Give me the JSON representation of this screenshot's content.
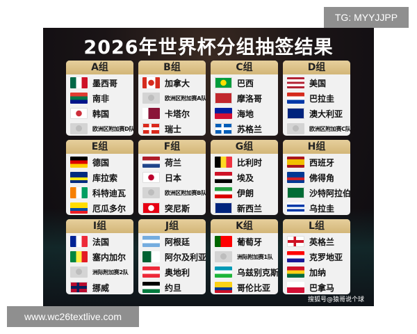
{
  "title": "2026年世界杯分组抽签结果",
  "credit": "搜狐号@猿哥说个球",
  "watermark_top": "TG: MYYJJPP",
  "watermark_bottom": "www.wc26textlive.com",
  "groups": [
    {
      "name": "A组",
      "teams": [
        {
          "name": "墨西哥",
          "flag": {
            "dir": "v",
            "colors": [
              "#006847",
              "#ffffff",
              "#ce1126"
            ]
          }
        },
        {
          "name": "南非",
          "flag": {
            "dir": "h",
            "colors": [
              "#e03c31",
              "#007749",
              "#001489"
            ]
          }
        },
        {
          "name": "韩国",
          "flag": {
            "dir": "h",
            "colors": [
              "#ffffff",
              "#ffffff"
            ],
            "dot": "#cd2e3a"
          }
        },
        {
          "name": "欧洲区附加赛D队",
          "placeholder": true
        }
      ]
    },
    {
      "name": "B组",
      "teams": [
        {
          "name": "加拿大",
          "flag": {
            "dir": "v",
            "colors": [
              "#d52b1e",
              "#ffffff",
              "#ffffff",
              "#d52b1e"
            ],
            "dot": "#d52b1e"
          }
        },
        {
          "name": "欧洲区附加赛A队",
          "placeholder": true
        },
        {
          "name": "卡塔尔",
          "flag": {
            "dir": "v",
            "colors": [
              "#ffffff",
              "#8a1538",
              "#8a1538"
            ]
          }
        },
        {
          "name": "瑞士",
          "flag": {
            "dir": "h",
            "colors": [
              "#da291c"
            ],
            "cross": "#ffffff"
          }
        }
      ]
    },
    {
      "name": "C组",
      "teams": [
        {
          "name": "巴西",
          "flag": {
            "dir": "h",
            "colors": [
              "#009c3b"
            ],
            "dot": "#ffdf00"
          }
        },
        {
          "name": "摩洛哥",
          "flag": {
            "dir": "h",
            "colors": [
              "#c1272d"
            ]
          }
        },
        {
          "name": "海地",
          "flag": {
            "dir": "h",
            "colors": [
              "#00209f",
              "#d21034"
            ]
          }
        },
        {
          "name": "苏格兰",
          "flag": {
            "dir": "h",
            "colors": [
              "#005eb8"
            ],
            "cross": "#ffffff"
          }
        }
      ]
    },
    {
      "name": "D组",
      "teams": [
        {
          "name": "美国",
          "flag": {
            "dir": "h",
            "colors": [
              "#b22234",
              "#ffffff",
              "#b22234",
              "#ffffff",
              "#b22234"
            ]
          }
        },
        {
          "name": "巴拉圭",
          "flag": {
            "dir": "h",
            "colors": [
              "#d52b1e",
              "#ffffff",
              "#0038a8"
            ]
          }
        },
        {
          "name": "澳大利亚",
          "flag": {
            "dir": "h",
            "colors": [
              "#00247d"
            ]
          }
        },
        {
          "name": "欧洲区附加赛C队",
          "placeholder": true
        }
      ]
    },
    {
      "name": "E组",
      "teams": [
        {
          "name": "德国",
          "flag": {
            "dir": "h",
            "colors": [
              "#000000",
              "#dd0000",
              "#ffce00"
            ]
          }
        },
        {
          "name": "库拉索",
          "flag": {
            "dir": "h",
            "colors": [
              "#002b7f",
              "#002b7f",
              "#f9e814",
              "#002b7f"
            ]
          }
        },
        {
          "name": "科特迪瓦",
          "flag": {
            "dir": "v",
            "colors": [
              "#f77f00",
              "#ffffff",
              "#009e60"
            ]
          }
        },
        {
          "name": "厄瓜多尔",
          "flag": {
            "dir": "h",
            "colors": [
              "#ffdd00",
              "#ffdd00",
              "#034ea2",
              "#ed1c24"
            ]
          }
        }
      ]
    },
    {
      "name": "F组",
      "teams": [
        {
          "name": "荷兰",
          "flag": {
            "dir": "h",
            "colors": [
              "#ae1c28",
              "#ffffff",
              "#21468b"
            ]
          }
        },
        {
          "name": "日本",
          "flag": {
            "dir": "h",
            "colors": [
              "#ffffff"
            ],
            "dot": "#bc002d"
          }
        },
        {
          "name": "欧洲区附加赛B队",
          "placeholder": true
        },
        {
          "name": "突尼斯",
          "flag": {
            "dir": "h",
            "colors": [
              "#e70013"
            ],
            "dot": "#ffffff"
          }
        }
      ]
    },
    {
      "name": "G组",
      "teams": [
        {
          "name": "比利时",
          "flag": {
            "dir": "v",
            "colors": [
              "#000000",
              "#fdda24",
              "#ef3340"
            ]
          }
        },
        {
          "name": "埃及",
          "flag": {
            "dir": "h",
            "colors": [
              "#ce1126",
              "#ffffff",
              "#000000"
            ]
          }
        },
        {
          "name": "伊朗",
          "flag": {
            "dir": "h",
            "colors": [
              "#239f40",
              "#ffffff",
              "#da0000"
            ]
          }
        },
        {
          "name": "新西兰",
          "flag": {
            "dir": "h",
            "colors": [
              "#00247d"
            ]
          }
        }
      ]
    },
    {
      "name": "H组",
      "teams": [
        {
          "name": "西班牙",
          "flag": {
            "dir": "h",
            "colors": [
              "#aa151b",
              "#f1bf00",
              "#f1bf00",
              "#aa151b"
            ]
          }
        },
        {
          "name": "佛得角",
          "flag": {
            "dir": "h",
            "colors": [
              "#003893",
              "#003893",
              "#cf2027",
              "#003893"
            ]
          }
        },
        {
          "name": "沙特阿拉伯",
          "flag": {
            "dir": "h",
            "colors": [
              "#006c35"
            ]
          }
        },
        {
          "name": "乌拉圭",
          "flag": {
            "dir": "h",
            "colors": [
              "#ffffff",
              "#0038a8",
              "#ffffff",
              "#0038a8",
              "#ffffff"
            ]
          }
        }
      ]
    },
    {
      "name": "I组",
      "teams": [
        {
          "name": "法国",
          "flag": {
            "dir": "v",
            "colors": [
              "#002395",
              "#ffffff",
              "#ed2939"
            ]
          }
        },
        {
          "name": "塞内加尔",
          "flag": {
            "dir": "v",
            "colors": [
              "#00853f",
              "#fdef42",
              "#e31b23"
            ]
          }
        },
        {
          "name": "洲际附加赛2队",
          "placeholder": true
        },
        {
          "name": "挪威",
          "flag": {
            "dir": "h",
            "colors": [
              "#ba0c2f"
            ],
            "cross": "#00205b"
          }
        }
      ]
    },
    {
      "name": "J组",
      "teams": [
        {
          "name": "阿根廷",
          "flag": {
            "dir": "h",
            "colors": [
              "#74acdf",
              "#ffffff",
              "#74acdf"
            ]
          }
        },
        {
          "name": "阿尔及利亚",
          "flag": {
            "dir": "v",
            "colors": [
              "#006233",
              "#ffffff"
            ]
          }
        },
        {
          "name": "奥地利",
          "flag": {
            "dir": "h",
            "colors": [
              "#ed2939",
              "#ffffff",
              "#ed2939"
            ]
          }
        },
        {
          "name": "约旦",
          "flag": {
            "dir": "h",
            "colors": [
              "#000000",
              "#ffffff",
              "#007a3d"
            ]
          }
        }
      ]
    },
    {
      "name": "K组",
      "teams": [
        {
          "name": "葡萄牙",
          "flag": {
            "dir": "v",
            "colors": [
              "#006600",
              "#ff0000",
              "#ff0000"
            ]
          }
        },
        {
          "name": "洲际附加赛1队",
          "placeholder": true
        },
        {
          "name": "乌兹别克斯坦",
          "flag": {
            "dir": "h",
            "colors": [
              "#0099b5",
              "#ffffff",
              "#1eb53a"
            ]
          }
        },
        {
          "name": "哥伦比亚",
          "flag": {
            "dir": "h",
            "colors": [
              "#fcd116",
              "#fcd116",
              "#003893",
              "#ce1126"
            ]
          }
        }
      ]
    },
    {
      "name": "L组",
      "teams": [
        {
          "name": "英格兰",
          "flag": {
            "dir": "h",
            "colors": [
              "#ffffff"
            ],
            "cross": "#ce1124"
          }
        },
        {
          "name": "克罗地亚",
          "flag": {
            "dir": "h",
            "colors": [
              "#ff0000",
              "#ffffff",
              "#171796"
            ]
          }
        },
        {
          "name": "加纳",
          "flag": {
            "dir": "h",
            "colors": [
              "#ce1126",
              "#fcd116",
              "#006b3f"
            ]
          }
        },
        {
          "name": "巴拿马",
          "flag": {
            "dir": "h",
            "colors": [
              "#ffffff",
              "#d21034"
            ]
          }
        }
      ]
    }
  ]
}
